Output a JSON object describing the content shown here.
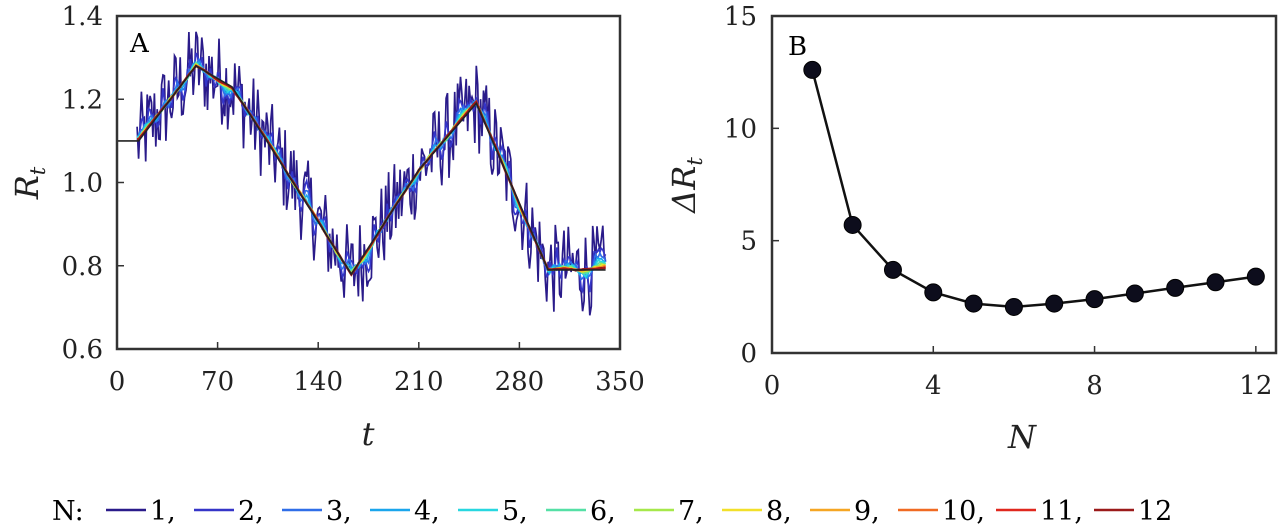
{
  "chart_data": [
    {
      "panel": "A",
      "type": "line",
      "xlabel": "t",
      "ylabel": "R",
      "ylabel_sub": "t",
      "xlim": [
        0,
        350
      ],
      "ylim": [
        0.6,
        1.4
      ],
      "xticks": [
        "0",
        "70",
        "140",
        "210",
        "280",
        "350"
      ],
      "yticks": [
        "0.6",
        "0.8",
        "1.0",
        "1.2",
        "1.4"
      ],
      "grid": false,
      "reference_line": {
        "x": [
          0,
          15,
          55,
          80,
          95,
          163,
          210,
          250,
          300,
          340
        ],
        "y": [
          1.1,
          1.1,
          1.28,
          1.23,
          1.15,
          0.78,
          1.03,
          1.19,
          0.79,
          0.79
        ]
      },
      "series_count": 12,
      "series_note": "N = 1 (noisiest) to N = 12 (smoothest) fluctuating around the reference line"
    },
    {
      "panel": "B",
      "type": "line",
      "xlabel": "N",
      "ylabel": "ΔR",
      "ylabel_sub": "t",
      "xlim": [
        0,
        12.5
      ],
      "ylim": [
        0,
        15
      ],
      "xticks": [
        "0",
        "4",
        "8",
        "12"
      ],
      "yticks": [
        "0",
        "5",
        "10",
        "15"
      ],
      "grid": false,
      "x": [
        1,
        2,
        3,
        4,
        5,
        6,
        7,
        8,
        9,
        10,
        11,
        12
      ],
      "y": [
        12.6,
        5.7,
        3.7,
        2.7,
        2.2,
        2.05,
        2.2,
        2.4,
        2.65,
        2.9,
        3.15,
        3.4
      ]
    }
  ],
  "legend": {
    "title": "N:",
    "items": [
      {
        "label": "1,",
        "color": "#2a1b8a"
      },
      {
        "label": "2,",
        "color": "#3535c8"
      },
      {
        "label": "3,",
        "color": "#2f6ee8"
      },
      {
        "label": "4,",
        "color": "#1aa6ec"
      },
      {
        "label": "5,",
        "color": "#28d7e0"
      },
      {
        "label": "6,",
        "color": "#55e0a6"
      },
      {
        "label": "7,",
        "color": "#a6e84a"
      },
      {
        "label": "8,",
        "color": "#f2e02a"
      },
      {
        "label": "9,",
        "color": "#f5a623"
      },
      {
        "label": "10,",
        "color": "#f06a22"
      },
      {
        "label": "11,",
        "color": "#e0281e"
      },
      {
        "label": "12",
        "color": "#9b1a1a"
      }
    ]
  }
}
